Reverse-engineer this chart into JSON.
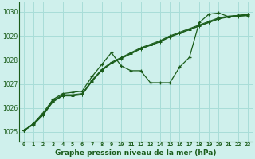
{
  "title": "Graphe pression niveau de la mer (hPa)",
  "bg_color": "#cff0ec",
  "grid_color": "#a8ddd8",
  "line_color": "#1a5c1a",
  "xlim": [
    -0.5,
    23.5
  ],
  "ylim": [
    1024.6,
    1030.4
  ],
  "yticks": [
    1025,
    1026,
    1027,
    1028,
    1029,
    1030
  ],
  "xticks": [
    0,
    1,
    2,
    3,
    4,
    5,
    6,
    7,
    8,
    9,
    10,
    11,
    12,
    13,
    14,
    15,
    16,
    17,
    18,
    19,
    20,
    21,
    22,
    23
  ],
  "zigzag": [
    1025.05,
    1025.35,
    1025.8,
    1026.35,
    1026.6,
    1026.65,
    1026.7,
    1027.3,
    1027.8,
    1028.3,
    1027.75,
    1027.55,
    1027.55,
    1027.05,
    1027.05,
    1027.05,
    1027.7,
    1028.1,
    1029.55,
    1029.9,
    1029.95,
    1029.8,
    1029.85,
    1029.9
  ],
  "linear1": [
    1025.05,
    1025.35,
    1025.75,
    1026.3,
    1026.55,
    1026.55,
    1026.6,
    1027.15,
    1027.6,
    1027.9,
    1028.1,
    1028.3,
    1028.5,
    1028.65,
    1028.8,
    1029.0,
    1029.15,
    1029.3,
    1029.45,
    1029.6,
    1029.75,
    1029.82,
    1029.85,
    1029.88
  ],
  "linear2": [
    1025.05,
    1025.33,
    1025.72,
    1026.27,
    1026.52,
    1026.52,
    1026.57,
    1027.12,
    1027.57,
    1027.87,
    1028.07,
    1028.27,
    1028.47,
    1028.62,
    1028.77,
    1028.97,
    1029.12,
    1029.27,
    1029.42,
    1029.57,
    1029.72,
    1029.8,
    1029.83,
    1029.86
  ],
  "linear3": [
    1025.05,
    1025.3,
    1025.7,
    1026.25,
    1026.5,
    1026.5,
    1026.55,
    1027.1,
    1027.55,
    1027.85,
    1028.05,
    1028.25,
    1028.45,
    1028.6,
    1028.75,
    1028.95,
    1029.1,
    1029.25,
    1029.4,
    1029.55,
    1029.7,
    1029.78,
    1029.81,
    1029.84
  ]
}
